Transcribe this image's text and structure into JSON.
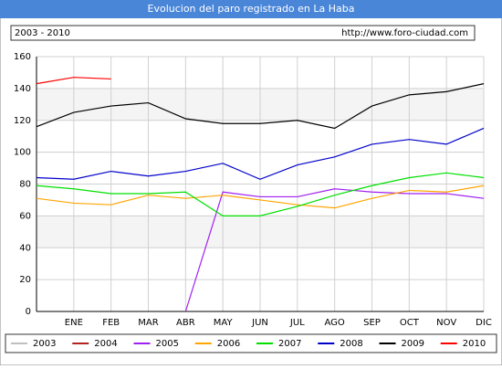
{
  "chart_data": {
    "type": "line",
    "title": "Evolucion del paro registrado en La Haba",
    "subtitle": "2003 - 2010",
    "source": "http://www.foro-ciudad.com",
    "categories": [
      null,
      "ENE",
      "FEB",
      "MAR",
      "ABR",
      "MAY",
      "JUN",
      "JUL",
      "AGO",
      "SEP",
      "OCT",
      "NOV",
      "DIC"
    ],
    "ylim": [
      0,
      160
    ],
    "yticks": [
      0,
      20,
      40,
      60,
      80,
      100,
      120,
      140,
      160
    ],
    "grid": true,
    "series": [
      {
        "name": "2003",
        "color": "#c0c0c0",
        "values": [
          null,
          null,
          null,
          null,
          null,
          null,
          null,
          null,
          null,
          null,
          null,
          null,
          null
        ]
      },
      {
        "name": "2004",
        "color": "#b22222",
        "values": [
          null,
          null,
          null,
          null,
          null,
          null,
          null,
          null,
          null,
          null,
          null,
          null,
          null
        ]
      },
      {
        "name": "2005",
        "color": "#a020f0",
        "values": [
          null,
          null,
          null,
          null,
          0,
          75,
          72,
          72,
          77,
          75,
          74,
          74,
          71
        ]
      },
      {
        "name": "2006",
        "color": "#ffa500",
        "values": [
          71,
          68,
          67,
          73,
          71,
          73,
          70,
          67,
          65,
          71,
          76,
          75,
          79
        ]
      },
      {
        "name": "2007",
        "color": "#00e000",
        "values": [
          79,
          77,
          74,
          74,
          75,
          60,
          60,
          66,
          73,
          79,
          84,
          87,
          84
        ]
      },
      {
        "name": "2008",
        "color": "#0000cc",
        "values": [
          84,
          83,
          88,
          85,
          88,
          93,
          83,
          92,
          97,
          105,
          108,
          105,
          115
        ]
      },
      {
        "name": "2009",
        "color": "#000000",
        "values": [
          116,
          125,
          129,
          131,
          121,
          118,
          118,
          120,
          115,
          129,
          136,
          138,
          143
        ]
      },
      {
        "name": "2010",
        "color": "#ff0000",
        "values": [
          143,
          147,
          146,
          null,
          null,
          null,
          null,
          null,
          null,
          null,
          null,
          null,
          null
        ]
      }
    ]
  }
}
